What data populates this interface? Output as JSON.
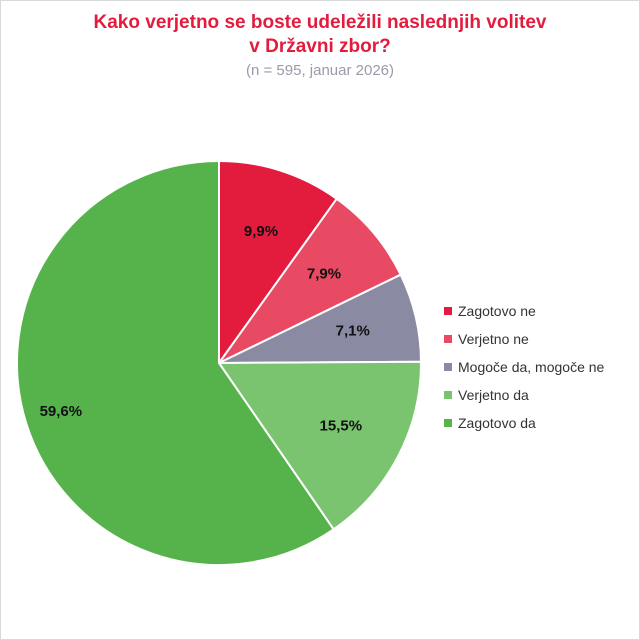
{
  "chart_data": {
    "type": "pie",
    "title_line1": "Kako verjetno se boste udeležili naslednjih volitev",
    "title_line2": "v Državni zbor?",
    "subtitle": "(n = 595, januar 2026)",
    "categories": [
      "Zagotovo ne",
      "Verjetno ne",
      "Mogoče da, mogoče ne",
      "Verjetno da",
      "Zagotovo da"
    ],
    "values": [
      9.9,
      7.9,
      7.1,
      15.5,
      59.6
    ],
    "labels": [
      "9,9%",
      "7,9%",
      "7,1%",
      "15,5%",
      "59,6%"
    ],
    "colors": [
      "#e31c3d",
      "#e84a64",
      "#8a8aa3",
      "#7ac470",
      "#56b34c"
    ],
    "legend_position": "right"
  }
}
